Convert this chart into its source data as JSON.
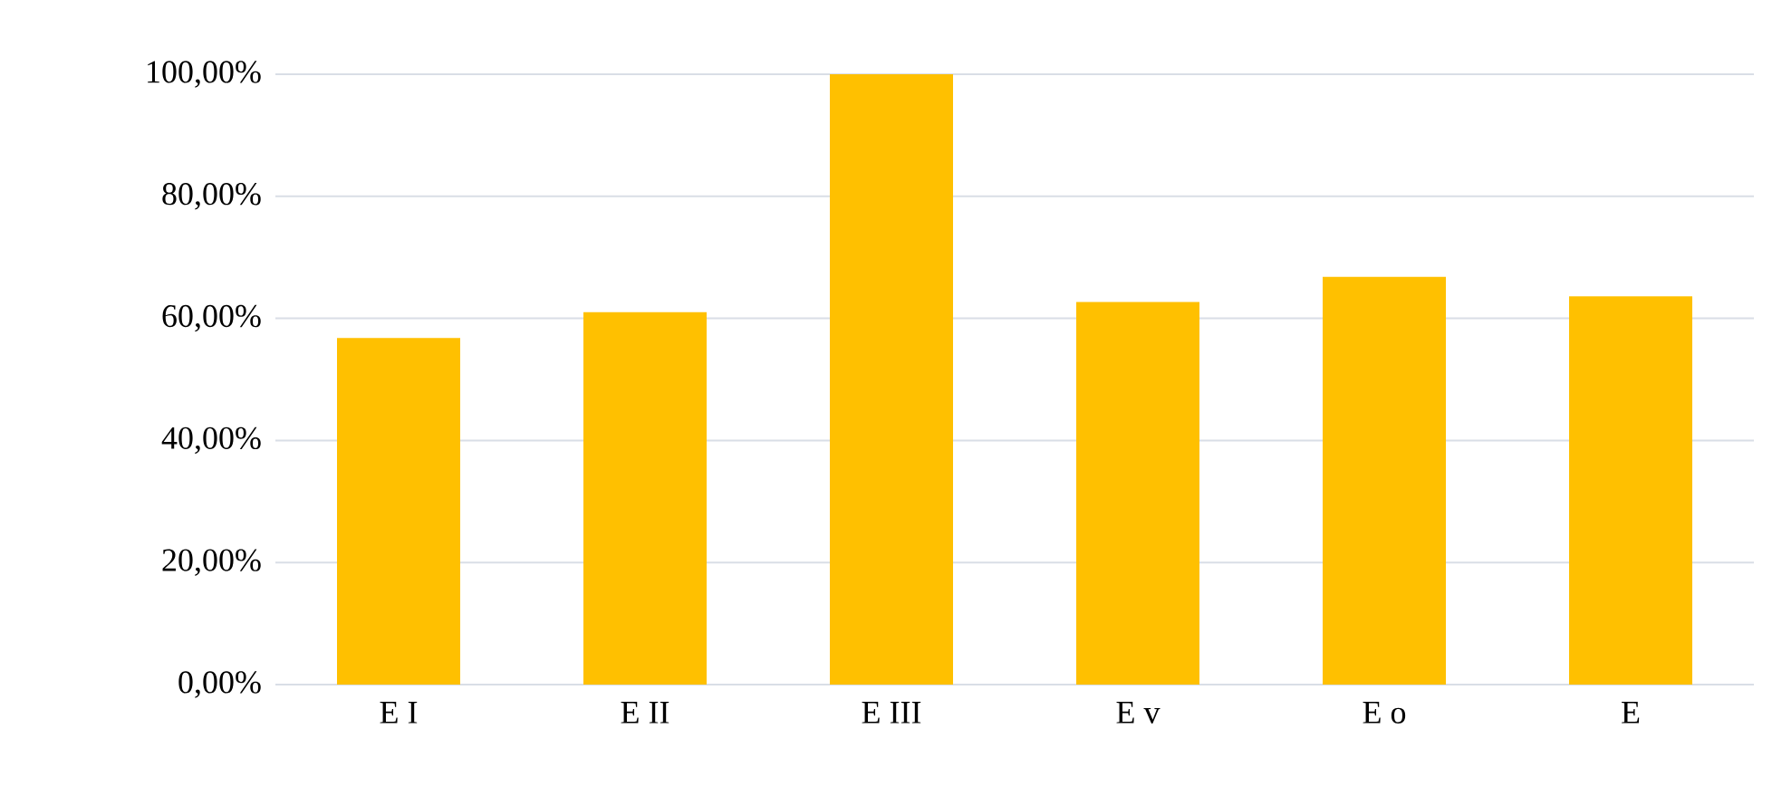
{
  "chart_data": {
    "type": "bar",
    "categories": [
      "E I",
      "E II",
      "E III",
      "E v",
      "E o",
      "E"
    ],
    "values": [
      56.8,
      61.0,
      100,
      62.7,
      66.8,
      63.6
    ],
    "color": "#ffc000",
    "ylim": [
      0,
      100
    ],
    "yticks": [
      {
        "value": 0,
        "label": "0,00%"
      },
      {
        "value": 20,
        "label": "20,00%"
      },
      {
        "value": 40,
        "label": "40,00%"
      },
      {
        "value": 60,
        "label": "60,00%"
      },
      {
        "value": 80,
        "label": "80,00%"
      },
      {
        "value": 100,
        "label": "100,00%"
      }
    ],
    "grid": "y"
  }
}
